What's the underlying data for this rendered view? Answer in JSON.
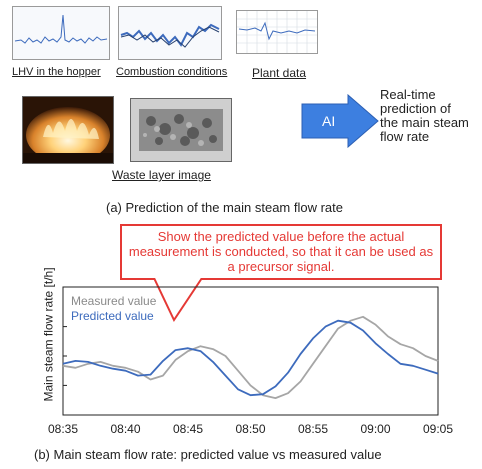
{
  "top": {
    "inputs": [
      {
        "label": "LHV in the hopper"
      },
      {
        "label": "Combustion conditions"
      },
      {
        "label": "Plant data"
      }
    ],
    "image_label": "Waste layer image",
    "ai_label": "AI",
    "output_text": "Real-time prediction of the main steam flow rate",
    "caption": "(a) Prediction of the main steam flow rate"
  },
  "callout": {
    "text": "Show the predicted value before the actual measurement is conducted, so that it can be used as a precursor signal."
  },
  "chart_data": {
    "type": "line",
    "ylabel": "Main steam flow rate [t/h]",
    "x_ticks": [
      "08:35",
      "08:40",
      "08:45",
      "08:50",
      "08:55",
      "09:00",
      "09:05"
    ],
    "series": [
      {
        "name": "Measured value",
        "color": "#a6a6a6",
        "x": [
          "08:35",
          "08:36",
          "08:37",
          "08:38",
          "08:39",
          "08:40",
          "08:41",
          "08:42",
          "08:43",
          "08:44",
          "08:45",
          "08:46",
          "08:47",
          "08:48",
          "08:49",
          "08:50",
          "08:51",
          "08:52",
          "08:53",
          "08:54",
          "08:55",
          "08:56",
          "08:57",
          "08:58",
          "08:59",
          "09:00",
          "09:01",
          "09:02",
          "09:03",
          "09:04",
          "09:05"
        ],
        "values": [
          0.4,
          0.38,
          0.42,
          0.44,
          0.4,
          0.38,
          0.34,
          0.26,
          0.3,
          0.46,
          0.55,
          0.6,
          0.57,
          0.5,
          0.35,
          0.2,
          0.1,
          0.07,
          0.12,
          0.24,
          0.42,
          0.6,
          0.78,
          0.86,
          0.9,
          0.82,
          0.7,
          0.62,
          0.58,
          0.5,
          0.45
        ]
      },
      {
        "name": "Predicted value",
        "color": "#3d6bbd",
        "x": [
          "08:35",
          "08:36",
          "08:37",
          "08:38",
          "08:39",
          "08:40",
          "08:41",
          "08:42",
          "08:43",
          "08:44",
          "08:45",
          "08:46",
          "08:47",
          "08:48",
          "08:49",
          "08:50",
          "08:51",
          "08:52",
          "08:53",
          "08:54",
          "08:55",
          "08:56",
          "08:57",
          "08:58",
          "08:59",
          "09:00",
          "09:01",
          "09:02",
          "09:03",
          "09:04",
          "09:05"
        ],
        "values": [
          0.42,
          0.45,
          0.44,
          0.4,
          0.37,
          0.35,
          0.3,
          0.31,
          0.45,
          0.56,
          0.58,
          0.55,
          0.44,
          0.3,
          0.16,
          0.1,
          0.11,
          0.19,
          0.33,
          0.52,
          0.68,
          0.8,
          0.86,
          0.84,
          0.76,
          0.63,
          0.52,
          0.42,
          0.4,
          0.36,
          0.32
        ]
      }
    ],
    "caption": "(b) Main steam flow rate: predicted value vs measured value"
  },
  "colors": {
    "accent_red": "#e53935",
    "ai_arrow": "#3d7fe0",
    "predicted": "#3d6bbd",
    "measured": "#a6a6a6"
  }
}
